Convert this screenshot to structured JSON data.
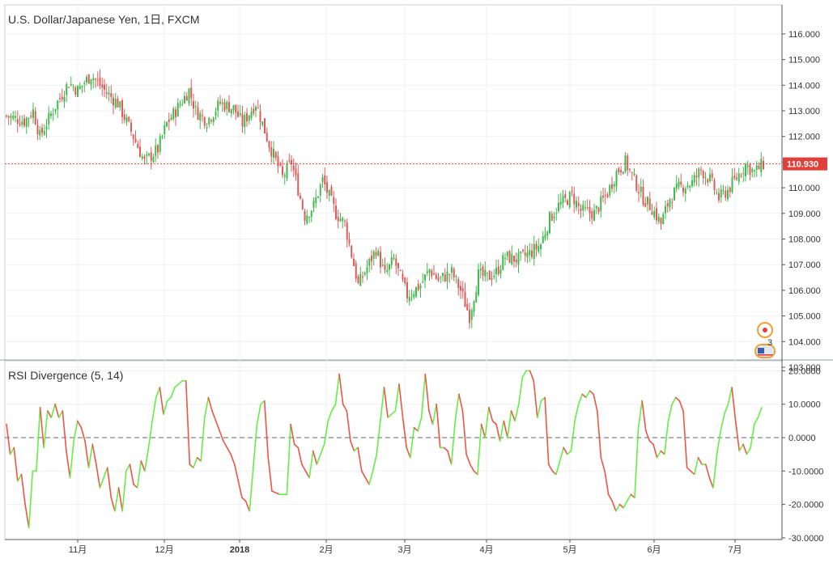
{
  "main_panel": {
    "title": "U.S. Dollar/Japanese Yen, 1日, FXCM",
    "last_price": "110.930",
    "price_ticks": [
      "116.000",
      "115.000",
      "114.000",
      "113.000",
      "112.000",
      "111.000",
      "110.000",
      "109.000",
      "108.000",
      "107.000",
      "106.000",
      "105.000",
      "104.000",
      "103.000"
    ],
    "event_count": "3"
  },
  "rsi_panel": {
    "title": "RSI Divergence (5, 14)",
    "ticks": [
      "20.0000",
      "10.0000",
      "0.0000",
      "-10.0000",
      "-20.0000",
      "-30.0000"
    ]
  },
  "time_axis": {
    "labels": [
      "11月",
      "12月",
      "2018",
      "2月",
      "3月",
      "4月",
      "5月",
      "6月",
      "7月"
    ]
  },
  "colors": {
    "up": "#3dbb4c",
    "down": "#e05a5a",
    "rsi_up": "#66ee44",
    "rsi_down": "#ee5544",
    "last_price_badge": "#e0403a",
    "grid": "#eef0f3"
  },
  "chart_data": [
    {
      "type": "candlestick",
      "title": "U.S. Dollar/Japanese Yen, 1日, FXCM",
      "ylim": [
        103,
        116.5
      ],
      "x_labels": [
        "11月",
        "12月",
        "2018",
        "2月",
        "3月",
        "4月",
        "5月",
        "6月",
        "7月"
      ],
      "close_anchors": [
        [
          0,
          112.8
        ],
        [
          8,
          112.6
        ],
        [
          12,
          113.0
        ],
        [
          15,
          112.0
        ],
        [
          22,
          113.2
        ],
        [
          28,
          114.1
        ],
        [
          32,
          113.8
        ],
        [
          38,
          114.4
        ],
        [
          45,
          113.7
        ],
        [
          50,
          113.3
        ],
        [
          56,
          112.2
        ],
        [
          62,
          111.0
        ],
        [
          68,
          111.5
        ],
        [
          72,
          112.5
        ],
        [
          76,
          113.0
        ],
        [
          82,
          113.8
        ],
        [
          85,
          113.0
        ],
        [
          90,
          112.6
        ],
        [
          96,
          113.3
        ],
        [
          102,
          113.1
        ],
        [
          106,
          112.5
        ],
        [
          112,
          113.3
        ],
        [
          118,
          111.7
        ],
        [
          124,
          110.4
        ],
        [
          128,
          111.0
        ],
        [
          134,
          108.9
        ],
        [
          138,
          109.3
        ],
        [
          142,
          110.3
        ],
        [
          148,
          109.0
        ],
        [
          152,
          108.6
        ],
        [
          158,
          106.2
        ],
        [
          162,
          106.9
        ],
        [
          166,
          107.6
        ],
        [
          170,
          106.6
        ],
        [
          174,
          107.2
        ],
        [
          180,
          105.8
        ],
        [
          186,
          106.2
        ],
        [
          190,
          106.8
        ],
        [
          194,
          106.4
        ],
        [
          200,
          106.7
        ],
        [
          204,
          106.0
        ],
        [
          208,
          105.0
        ],
        [
          212,
          106.6
        ],
        [
          216,
          106.5
        ],
        [
          220,
          106.7
        ],
        [
          224,
          107.3
        ],
        [
          230,
          107.2
        ],
        [
          236,
          107.5
        ],
        [
          240,
          107.8
        ],
        [
          244,
          108.8
        ],
        [
          248,
          109.3
        ],
        [
          254,
          109.7
        ],
        [
          258,
          109.1
        ],
        [
          264,
          109.0
        ],
        [
          270,
          109.8
        ],
        [
          274,
          110.6
        ],
        [
          278,
          111.0
        ],
        [
          282,
          110.3
        ],
        [
          286,
          109.6
        ],
        [
          290,
          109.2
        ],
        [
          294,
          108.6
        ],
        [
          298,
          109.6
        ],
        [
          302,
          110.0
        ],
        [
          308,
          110.2
        ],
        [
          312,
          110.7
        ],
        [
          316,
          110.3
        ],
        [
          320,
          109.6
        ],
        [
          324,
          109.9
        ],
        [
          328,
          110.4
        ],
        [
          332,
          110.9
        ],
        [
          336,
          110.6
        ],
        [
          340,
          110.93
        ]
      ],
      "series": [
        {
          "name": "USD/JPY",
          "values_from": "close_anchors"
        }
      ]
    },
    {
      "type": "line",
      "title": "RSI Divergence (5, 14)",
      "ylim": [
        -30,
        20
      ],
      "series": [
        {
          "name": "RSI Divergence",
          "values": [
            4,
            -5,
            -3,
            -13,
            -11,
            -20,
            -27,
            -10,
            -10,
            9,
            -3,
            8,
            6,
            10,
            6,
            8,
            -4,
            -12,
            -1,
            5,
            3,
            -1,
            -9,
            -2,
            -8,
            -15,
            -12,
            -9,
            -18,
            -22,
            -15,
            -22,
            -10,
            -8,
            -14,
            -15,
            -7,
            -10,
            -3,
            5,
            12,
            15,
            7,
            11,
            12,
            15,
            16,
            17,
            17,
            -8,
            -9,
            -6,
            -7,
            6,
            12,
            8,
            5,
            2,
            -1,
            -3,
            -5,
            -8,
            -13,
            -18,
            -19,
            -22,
            -9,
            4,
            10,
            11,
            -6,
            -16,
            -16.5,
            -17,
            -17,
            -17,
            4,
            -2,
            -3,
            -8,
            -10,
            -12,
            -4,
            -8,
            -5,
            -2,
            5,
            8,
            10,
            19,
            10,
            8,
            -1,
            -4,
            -3,
            -10,
            -12,
            -14,
            -10,
            -5,
            5,
            15,
            6,
            7,
            8,
            16,
            6,
            -3,
            -6,
            3,
            2,
            6,
            19,
            8,
            4,
            10,
            -3,
            -3,
            -4,
            -8,
            5,
            13,
            8,
            -5,
            -8,
            -10,
            -11,
            4,
            0,
            9,
            5,
            4,
            -1,
            5,
            0,
            8,
            5,
            10,
            18,
            20,
            20,
            17,
            6,
            11,
            12,
            -8,
            -10,
            -11,
            -7,
            -3,
            -5,
            -4,
            5,
            10,
            13,
            12,
            14,
            13,
            8,
            -6,
            -10,
            -17,
            -19,
            -22,
            -20,
            -21,
            -19,
            -17,
            -18,
            3,
            11,
            2,
            -1,
            -2,
            -6,
            -4,
            -5,
            5,
            10,
            12,
            11,
            8,
            -9,
            -10,
            -11,
            -6,
            -8,
            -8,
            -12,
            -15,
            -5,
            2,
            7,
            10,
            15,
            5,
            -4,
            -2,
            -5,
            -3,
            4,
            6,
            9
          ]
        }
      ]
    }
  ]
}
